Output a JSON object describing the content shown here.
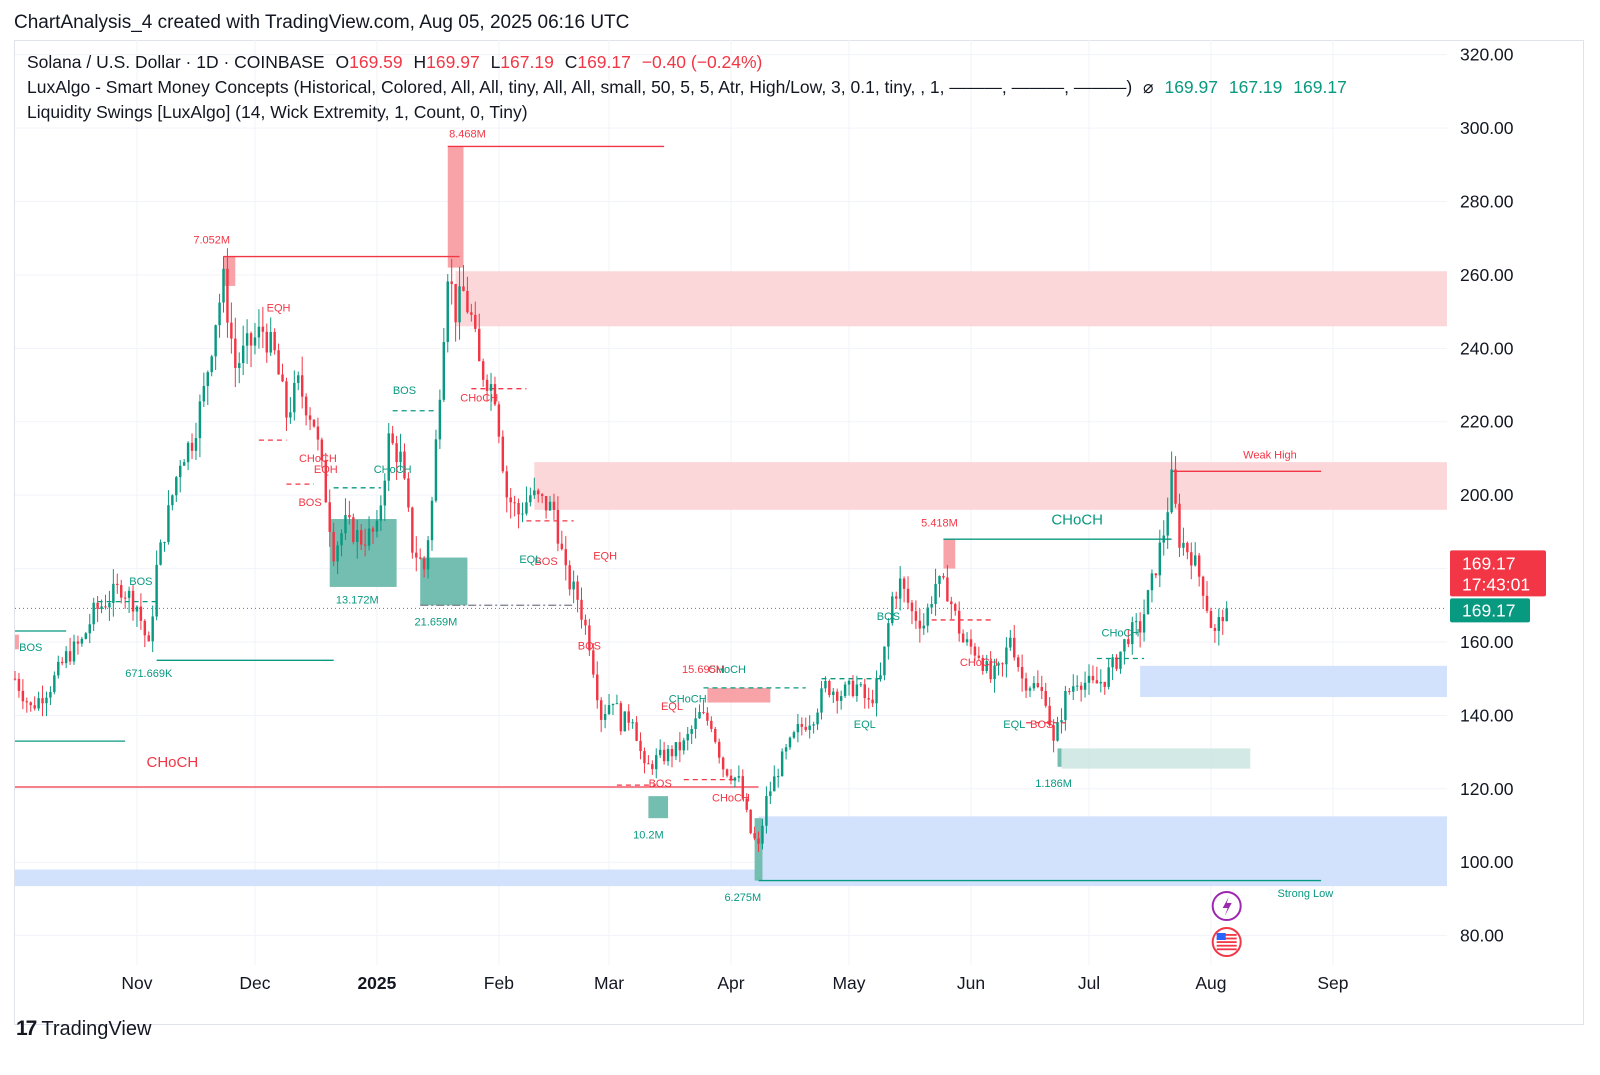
{
  "header": {
    "credit": "ChartAnalysis_4 created with TradingView.com, Aug 05, 2025 06:16 UTC"
  },
  "legend": {
    "symbol": "Solana / U.S. Dollar · 1D · COINBASE",
    "o_label": "O",
    "o_val": "169.59",
    "h_label": "H",
    "h_val": "169.97",
    "l_label": "L",
    "l_val": "167.19",
    "c_label": "C",
    "c_val": "169.17",
    "change": "−0.40 (−0.24%)",
    "indicator1": "LuxAlgo - Smart Money Concepts (Historical, Colored, All, All, tiny, All, All, small, 50, 5, 5, Atr, High/Low, 3, 0.1, tiny, , 1, ———, ———, ———)",
    "indicator1_icon": "⌀",
    "indicator1_vals": [
      "169.97",
      "167.19",
      "169.17"
    ],
    "indicator2": "Liquidity Swings [LuxAlgo] (14, Wick Extremity, 1, Count, 0, Tiny)"
  },
  "footer": {
    "logo_mark": "17",
    "logo_text": "TradingView"
  },
  "chart_data": {
    "type": "candlestick",
    "symbol": "SOLUSD",
    "interval": "1D",
    "ylim": [
      72,
      324
    ],
    "yticks": [
      80,
      100,
      120,
      140,
      160,
      180,
      200,
      220,
      240,
      260,
      280,
      300,
      320
    ],
    "y_ticks_labeled": [
      "80.00",
      "100.00",
      "120.00",
      "140.00",
      "160.00",
      "",
      "200.00",
      "220.00",
      "240.00",
      "260.00",
      "280.00",
      "300.00",
      "320.00"
    ],
    "x_start": "2024-10-01",
    "x_end": "2025-09-30",
    "x_ticks": [
      {
        "date": "2024-11-01",
        "label": "Nov",
        "bold": false
      },
      {
        "date": "2024-12-01",
        "label": "Dec",
        "bold": false
      },
      {
        "date": "2025-01-01",
        "label": "2025",
        "bold": true
      },
      {
        "date": "2025-02-01",
        "label": "Feb",
        "bold": false
      },
      {
        "date": "2025-03-01",
        "label": "Mar",
        "bold": false
      },
      {
        "date": "2025-04-01",
        "label": "Apr",
        "bold": false
      },
      {
        "date": "2025-05-01",
        "label": "May",
        "bold": false
      },
      {
        "date": "2025-06-01",
        "label": "Jun",
        "bold": false
      },
      {
        "date": "2025-07-01",
        "label": "Jul",
        "bold": false
      },
      {
        "date": "2025-08-01",
        "label": "Aug",
        "bold": false
      },
      {
        "date": "2025-09-01",
        "label": "Sep",
        "bold": false
      }
    ],
    "last_price": 169.17,
    "last_price_label": "169.17",
    "countdown": "17:43:01",
    "price_tag_green": "169.17",
    "colors": {
      "up": "#089981",
      "down": "#f23645",
      "supply": "#fbd7da",
      "demand": "#d2e2fd",
      "teal_box": "#74bdb1",
      "red_box": "#f7a3a8"
    },
    "close_path": [
      [
        "2024-10-01",
        150
      ],
      [
        "2024-10-05",
        142
      ],
      [
        "2024-10-10",
        148
      ],
      [
        "2024-10-14",
        156
      ],
      [
        "2024-10-18",
        160
      ],
      [
        "2024-10-21",
        168
      ],
      [
        "2024-10-25",
        172
      ],
      [
        "2024-10-28",
        175
      ],
      [
        "2024-11-01",
        170
      ],
      [
        "2024-11-04",
        158
      ],
      [
        "2024-11-06",
        180
      ],
      [
        "2024-11-09",
        195
      ],
      [
        "2024-11-12",
        210
      ],
      [
        "2024-11-15",
        215
      ],
      [
        "2024-11-18",
        228
      ],
      [
        "2024-11-21",
        248
      ],
      [
        "2024-11-23",
        258
      ],
      [
        "2024-11-26",
        235
      ],
      [
        "2024-11-29",
        240
      ],
      [
        "2024-12-03",
        245
      ],
      [
        "2024-12-06",
        238
      ],
      [
        "2024-12-09",
        222
      ],
      [
        "2024-12-12",
        230
      ],
      [
        "2024-12-16",
        220
      ],
      [
        "2024-12-19",
        200
      ],
      [
        "2024-12-21",
        185
      ],
      [
        "2024-12-24",
        192
      ],
      [
        "2024-12-28",
        188
      ],
      [
        "2025-01-01",
        190
      ],
      [
        "2025-01-04",
        215
      ],
      [
        "2025-01-07",
        210
      ],
      [
        "2025-01-10",
        186
      ],
      [
        "2025-01-13",
        180
      ],
      [
        "2025-01-15",
        198
      ],
      [
        "2025-01-17",
        230
      ],
      [
        "2025-01-19",
        262
      ],
      [
        "2025-01-21",
        250
      ],
      [
        "2025-01-23",
        255
      ],
      [
        "2025-01-25",
        248
      ],
      [
        "2025-01-27",
        235
      ],
      [
        "2025-01-29",
        232
      ],
      [
        "2025-01-31",
        228
      ],
      [
        "2025-02-03",
        200
      ],
      [
        "2025-02-06",
        195
      ],
      [
        "2025-02-09",
        200
      ],
      [
        "2025-02-12",
        198
      ],
      [
        "2025-02-15",
        196
      ],
      [
        "2025-02-18",
        178
      ],
      [
        "2025-02-21",
        172
      ],
      [
        "2025-02-24",
        160
      ],
      [
        "2025-02-27",
        140
      ],
      [
        "2025-03-02",
        145
      ],
      [
        "2025-03-04",
        138
      ],
      [
        "2025-03-07",
        140
      ],
      [
        "2025-03-10",
        125
      ],
      [
        "2025-03-13",
        128
      ],
      [
        "2025-03-17",
        130
      ],
      [
        "2025-03-20",
        132
      ],
      [
        "2025-03-24",
        140
      ],
      [
        "2025-03-27",
        138
      ],
      [
        "2025-03-30",
        126
      ],
      [
        "2025-04-03",
        122
      ],
      [
        "2025-04-06",
        108
      ],
      [
        "2025-04-08",
        104
      ],
      [
        "2025-04-10",
        117
      ],
      [
        "2025-04-14",
        128
      ],
      [
        "2025-04-18",
        136
      ],
      [
        "2025-04-22",
        140
      ],
      [
        "2025-04-25",
        148
      ],
      [
        "2025-04-29",
        146
      ],
      [
        "2025-05-03",
        148
      ],
      [
        "2025-05-06",
        143
      ],
      [
        "2025-05-09",
        150
      ],
      [
        "2025-05-12",
        172
      ],
      [
        "2025-05-14",
        176
      ],
      [
        "2025-05-17",
        168
      ],
      [
        "2025-05-20",
        165
      ],
      [
        "2025-05-23",
        176
      ],
      [
        "2025-05-26",
        174
      ],
      [
        "2025-05-30",
        160
      ],
      [
        "2025-06-03",
        157
      ],
      [
        "2025-06-06",
        150
      ],
      [
        "2025-06-09",
        153
      ],
      [
        "2025-06-11",
        162
      ],
      [
        "2025-06-14",
        150
      ],
      [
        "2025-06-17",
        148
      ],
      [
        "2025-06-20",
        145
      ],
      [
        "2025-06-22",
        132
      ],
      [
        "2025-06-25",
        145
      ],
      [
        "2025-06-28",
        150
      ],
      [
        "2025-07-02",
        148
      ],
      [
        "2025-07-05",
        150
      ],
      [
        "2025-07-08",
        155
      ],
      [
        "2025-07-11",
        162
      ],
      [
        "2025-07-14",
        164
      ],
      [
        "2025-07-17",
        176
      ],
      [
        "2025-07-20",
        190
      ],
      [
        "2025-07-22",
        204
      ],
      [
        "2025-07-24",
        188
      ],
      [
        "2025-07-27",
        184
      ],
      [
        "2025-07-30",
        175
      ],
      [
        "2025-08-01",
        165
      ],
      [
        "2025-08-02",
        162
      ],
      [
        "2025-08-04",
        168
      ],
      [
        "2025-08-05",
        169.17
      ]
    ],
    "zones": [
      {
        "kind": "supply",
        "from": "2025-01-21",
        "to": "2025-09-30",
        "top": 261,
        "bottom": 246
      },
      {
        "kind": "supply",
        "from": "2025-02-10",
        "to": "2025-09-30",
        "top": 209,
        "bottom": 196
      },
      {
        "kind": "demand",
        "from": "2025-07-14",
        "to": "2025-09-30",
        "top": 153.5,
        "bottom": 145
      },
      {
        "kind": "demand",
        "from": "2025-04-08",
        "to": "2025-09-30",
        "top": 112.5,
        "bottom": 94.5
      },
      {
        "kind": "demand",
        "from": "2024-10-01",
        "to": "2025-09-30",
        "top": 98,
        "bottom": 93.5
      },
      {
        "kind": "teal_box",
        "from": "2024-12-20",
        "to": "2025-01-06",
        "top": 193.5,
        "bottom": 175
      },
      {
        "kind": "teal_box",
        "from": "2025-01-12",
        "to": "2025-01-24",
        "top": 183,
        "bottom": 170
      },
      {
        "kind": "teal_box",
        "from": "2025-03-11",
        "to": "2025-03-16",
        "top": 118,
        "bottom": 112
      },
      {
        "kind": "teal_box_light",
        "from": "2025-06-24",
        "to": "2025-08-11",
        "top": 131,
        "bottom": 125.5
      },
      {
        "kind": "teal_box",
        "from": "2025-04-07",
        "to": "2025-04-09",
        "top": 112,
        "bottom": 95
      },
      {
        "kind": "teal_box",
        "from": "2025-06-23",
        "to": "2025-06-24",
        "top": 131,
        "bottom": 126
      },
      {
        "kind": "red_box",
        "from": "2024-11-23",
        "to": "2024-11-26",
        "top": 265,
        "bottom": 257
      },
      {
        "kind": "red_box",
        "from": "2025-01-19",
        "to": "2025-01-23",
        "top": 295,
        "bottom": 262
      },
      {
        "kind": "red_box",
        "from": "2025-03-26",
        "to": "2025-04-11",
        "top": 147.5,
        "bottom": 143.5
      },
      {
        "kind": "red_box",
        "from": "2025-05-25",
        "to": "2025-05-28",
        "top": 188,
        "bottom": 180
      },
      {
        "kind": "red_box",
        "from": "2024-10-01",
        "to": "2024-10-02",
        "top": 162,
        "bottom": 158
      }
    ],
    "levels": [
      {
        "color": "red",
        "style": "solid",
        "from": "2025-01-19",
        "to": "2025-03-15",
        "y": 295
      },
      {
        "color": "red",
        "style": "solid",
        "from": "2024-11-23",
        "to": "2025-01-22",
        "y": 265
      },
      {
        "color": "red",
        "style": "solid",
        "from": "2024-10-01",
        "to": "2025-04-08",
        "y": 120.5
      },
      {
        "color": "red",
        "style": "solid",
        "from": "2025-07-22",
        "to": "2025-08-29",
        "y": 206.5
      },
      {
        "color": "teal",
        "style": "solid",
        "from": "2025-05-25",
        "to": "2025-07-22",
        "y": 188
      },
      {
        "color": "teal",
        "style": "solid",
        "from": "2024-11-06",
        "to": "2024-12-21",
        "y": 155
      },
      {
        "color": "teal",
        "style": "solid",
        "from": "2024-10-01",
        "to": "2024-10-29",
        "y": 133
      },
      {
        "color": "teal",
        "style": "solid",
        "from": "2024-10-01",
        "to": "2024-10-14",
        "y": 163
      },
      {
        "color": "teal",
        "style": "solid",
        "from": "2025-04-08",
        "to": "2025-08-29",
        "y": 95
      },
      {
        "color": "teal",
        "style": "dashed",
        "from": "2024-10-22",
        "to": "2024-11-06",
        "y": 171
      },
      {
        "color": "teal",
        "style": "dashed",
        "from": "2025-01-05",
        "to": "2025-01-16",
        "y": 223
      },
      {
        "color": "teal",
        "style": "dashed",
        "from": "2024-12-21",
        "to": "2025-01-02",
        "y": 202
      },
      {
        "color": "teal",
        "style": "dashed",
        "from": "2025-03-25",
        "to": "2025-04-20",
        "y": 147.5
      },
      {
        "color": "teal",
        "style": "dashed",
        "from": "2025-04-24",
        "to": "2025-05-09",
        "y": 150
      },
      {
        "color": "teal",
        "style": "dashed",
        "from": "2025-07-03",
        "to": "2025-07-15",
        "y": 155.5
      },
      {
        "color": "red",
        "style": "dashed",
        "from": "2024-12-02",
        "to": "2024-12-09",
        "y": 215
      },
      {
        "color": "red",
        "style": "dashed",
        "from": "2024-12-09",
        "to": "2024-12-16",
        "y": 203
      },
      {
        "color": "red",
        "style": "dashed",
        "from": "2025-01-25",
        "to": "2025-02-08",
        "y": 229
      },
      {
        "color": "red",
        "style": "dashed",
        "from": "2025-02-08",
        "to": "2025-02-20",
        "y": 193
      },
      {
        "color": "red",
        "style": "dashed",
        "from": "2025-03-03",
        "to": "2025-03-13",
        "y": 121
      },
      {
        "color": "red",
        "style": "dashed",
        "from": "2025-03-20",
        "to": "2025-04-02",
        "y": 122.5
      },
      {
        "color": "red",
        "style": "dashed",
        "from": "2025-05-22",
        "to": "2025-06-06",
        "y": 166
      },
      {
        "color": "red",
        "style": "dashed",
        "from": "2025-06-15",
        "to": "2025-06-25",
        "y": 138
      },
      {
        "color": "gray",
        "style": "dashdot",
        "from": "2025-01-12",
        "to": "2025-02-20",
        "y": 170
      }
    ],
    "labels": [
      {
        "text": "7.052M",
        "date": "2024-11-20",
        "y": 268.5,
        "color": "red",
        "size": 11
      },
      {
        "text": "8.468M",
        "date": "2025-01-24",
        "y": 297.5,
        "color": "red",
        "size": 11
      },
      {
        "text": "EQH",
        "date": "2024-12-07",
        "y": 250,
        "color": "red",
        "size": 11
      },
      {
        "text": "EQH",
        "date": "2024-12-19",
        "y": 206,
        "color": "red",
        "size": 11
      },
      {
        "text": "EQH",
        "date": "2025-02-28",
        "y": 182.5,
        "color": "red",
        "size": 11
      },
      {
        "text": "CHoCH",
        "date": "2024-12-17",
        "y": 209,
        "color": "red",
        "size": 11
      },
      {
        "text": "CHoCH",
        "date": "2025-01-27",
        "y": 225.5,
        "color": "red",
        "size": 11
      },
      {
        "text": "CHoCH",
        "date": "2025-01-05",
        "y": 206,
        "color": "teal",
        "size": 11
      },
      {
        "text": "CHoCH",
        "date": "2024-11-10",
        "y": 126,
        "color": "red",
        "size": 15
      },
      {
        "text": "CHoCH",
        "date": "2025-03-31",
        "y": 151.5,
        "color": "teal",
        "size": 11
      },
      {
        "text": "CHoCH",
        "date": "2025-03-21",
        "y": 143.5,
        "color": "teal",
        "size": 11
      },
      {
        "text": "CHoCH",
        "date": "2025-04-01",
        "y": 116.5,
        "color": "red",
        "size": 11
      },
      {
        "text": "CHoCH",
        "date": "2025-06-03",
        "y": 153.5,
        "color": "red",
        "size": 11
      },
      {
        "text": "CHoCH",
        "date": "2025-07-09",
        "y": 161.5,
        "color": "teal",
        "size": 11
      },
      {
        "text": "CHoCH",
        "date": "2025-06-28",
        "y": 192,
        "color": "teal",
        "size": 15
      },
      {
        "text": "BOS",
        "date": "2024-10-05",
        "y": 157.5,
        "color": "teal",
        "size": 11
      },
      {
        "text": "BOS",
        "date": "2024-11-02",
        "y": 175.5,
        "color": "teal",
        "size": 11
      },
      {
        "text": "BOS",
        "date": "2024-12-15",
        "y": 197,
        "color": "red",
        "size": 11
      },
      {
        "text": "BOS",
        "date": "2025-01-08",
        "y": 227.5,
        "color": "teal",
        "size": 11
      },
      {
        "text": "BOS",
        "date": "2025-02-13",
        "y": 181,
        "color": "red",
        "size": 11
      },
      {
        "text": "BOS",
        "date": "2025-02-24",
        "y": 158,
        "color": "red",
        "size": 11
      },
      {
        "text": "BOS",
        "date": "2025-03-14",
        "y": 120.5,
        "color": "red",
        "size": 11
      },
      {
        "text": "BOS",
        "date": "2025-05-11",
        "y": 166,
        "color": "teal",
        "size": 11
      },
      {
        "text": "BOS",
        "date": "2025-06-19",
        "y": 136.5,
        "color": "red",
        "size": 11
      },
      {
        "text": "EQL",
        "date": "2025-02-09",
        "y": 181.5,
        "color": "teal",
        "size": 11
      },
      {
        "text": "EQL",
        "date": "2025-05-05",
        "y": 136.5,
        "color": "teal",
        "size": 11
      },
      {
        "text": "EQL",
        "date": "2025-06-12",
        "y": 136.5,
        "color": "teal",
        "size": 11
      },
      {
        "text": "EQL",
        "date": "2025-03-17",
        "y": 141.5,
        "color": "red",
        "size": 11
      },
      {
        "text": "13.172M",
        "date": "2024-12-27",
        "y": 170.5,
        "color": "teal",
        "size": 11
      },
      {
        "text": "21.659M",
        "date": "2025-01-16",
        "y": 164.5,
        "color": "teal",
        "size": 11
      },
      {
        "text": "671.669K",
        "date": "2024-11-04",
        "y": 150.5,
        "color": "teal",
        "size": 11
      },
      {
        "text": "15.695M",
        "date": "2025-03-25",
        "y": 151.5,
        "color": "red",
        "size": 11
      },
      {
        "text": "10.2M",
        "date": "2025-03-11",
        "y": 106.5,
        "color": "teal",
        "size": 11
      },
      {
        "text": "6.275M",
        "date": "2025-04-04",
        "y": 89.5,
        "color": "teal",
        "size": 11
      },
      {
        "text": "5.418M",
        "date": "2025-05-24",
        "y": 191.5,
        "color": "red",
        "size": 11
      },
      {
        "text": "1.186M",
        "date": "2025-06-22",
        "y": 120.5,
        "color": "teal",
        "size": 11
      },
      {
        "text": "Weak High",
        "date": "2025-08-16",
        "y": 210,
        "color": "red",
        "size": 11
      },
      {
        "text": "Strong Low",
        "date": "2025-08-25",
        "y": 90.5,
        "color": "teal",
        "size": 11
      }
    ]
  }
}
